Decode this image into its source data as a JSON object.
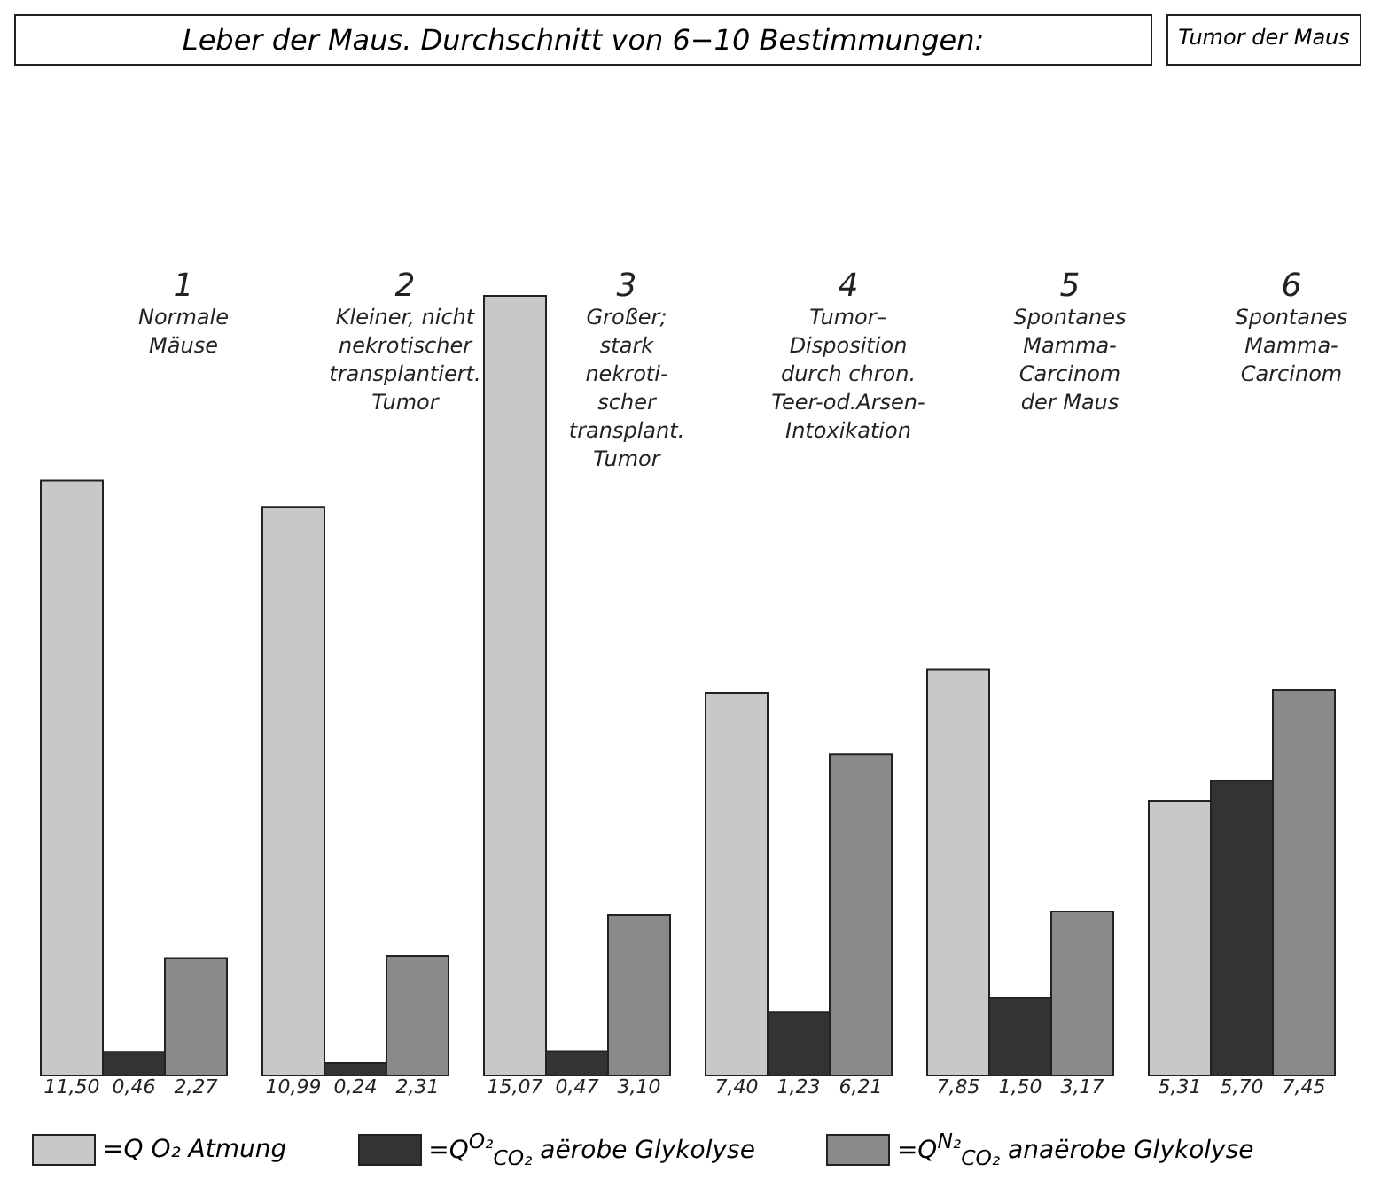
{
  "chart_data": {
    "type": "bar",
    "title": "Leber der Maus.  Durchschnitt von 6−10 Bestimmungen:",
    "annotations": [
      "Tumor der Maus"
    ],
    "categories": [
      "1\nNormale\nMäuse",
      "2\nKleiner, nicht\nnekrotischer\ntransplantiert.\nTumor",
      "3\nGroßer;\nstark\nnekroti-\nscher\ntransplant.\nTumor",
      "4\nTumor–\nDisposition\ndurch chron.\nTeer-od.Arsen-\nIntoxikation",
      "5\nSpontanes\nMamma-\nCarcinom\nder Maus",
      "6\nSpontanes\nMamma-\nCarcinom"
    ],
    "series": [
      {
        "name": "=Q O₂ Atmung",
        "color": "#c8c8c8",
        "values": [
          11.5,
          10.99,
          15.07,
          7.4,
          7.85,
          5.31
        ],
        "value_labels": [
          "11,50",
          "10,99",
          "15,07",
          "7,40",
          "7,85",
          "5,31"
        ]
      },
      {
        "name": "=Q$^{O₂}$$_{CO₂}$ aërobe Glykolyse",
        "color": "#333333",
        "values": [
          0.46,
          0.24,
          0.47,
          1.23,
          1.5,
          5.7
        ],
        "value_labels": [
          "0,46",
          "0,24",
          "0,47",
          "1,23",
          "1,50",
          "5,70"
        ]
      },
      {
        "name": "=Q$^{N₂}$$_{CO₂}$ anaërobe Glykolyse",
        "color": "#8a8a8a",
        "values": [
          2.27,
          2.31,
          3.1,
          6.21,
          3.17,
          7.45
        ],
        "value_labels": [
          "2,27",
          "2,31",
          "3,10",
          "6,21",
          "3,17",
          "7,45"
        ]
      }
    ],
    "legend": "bottom"
  }
}
